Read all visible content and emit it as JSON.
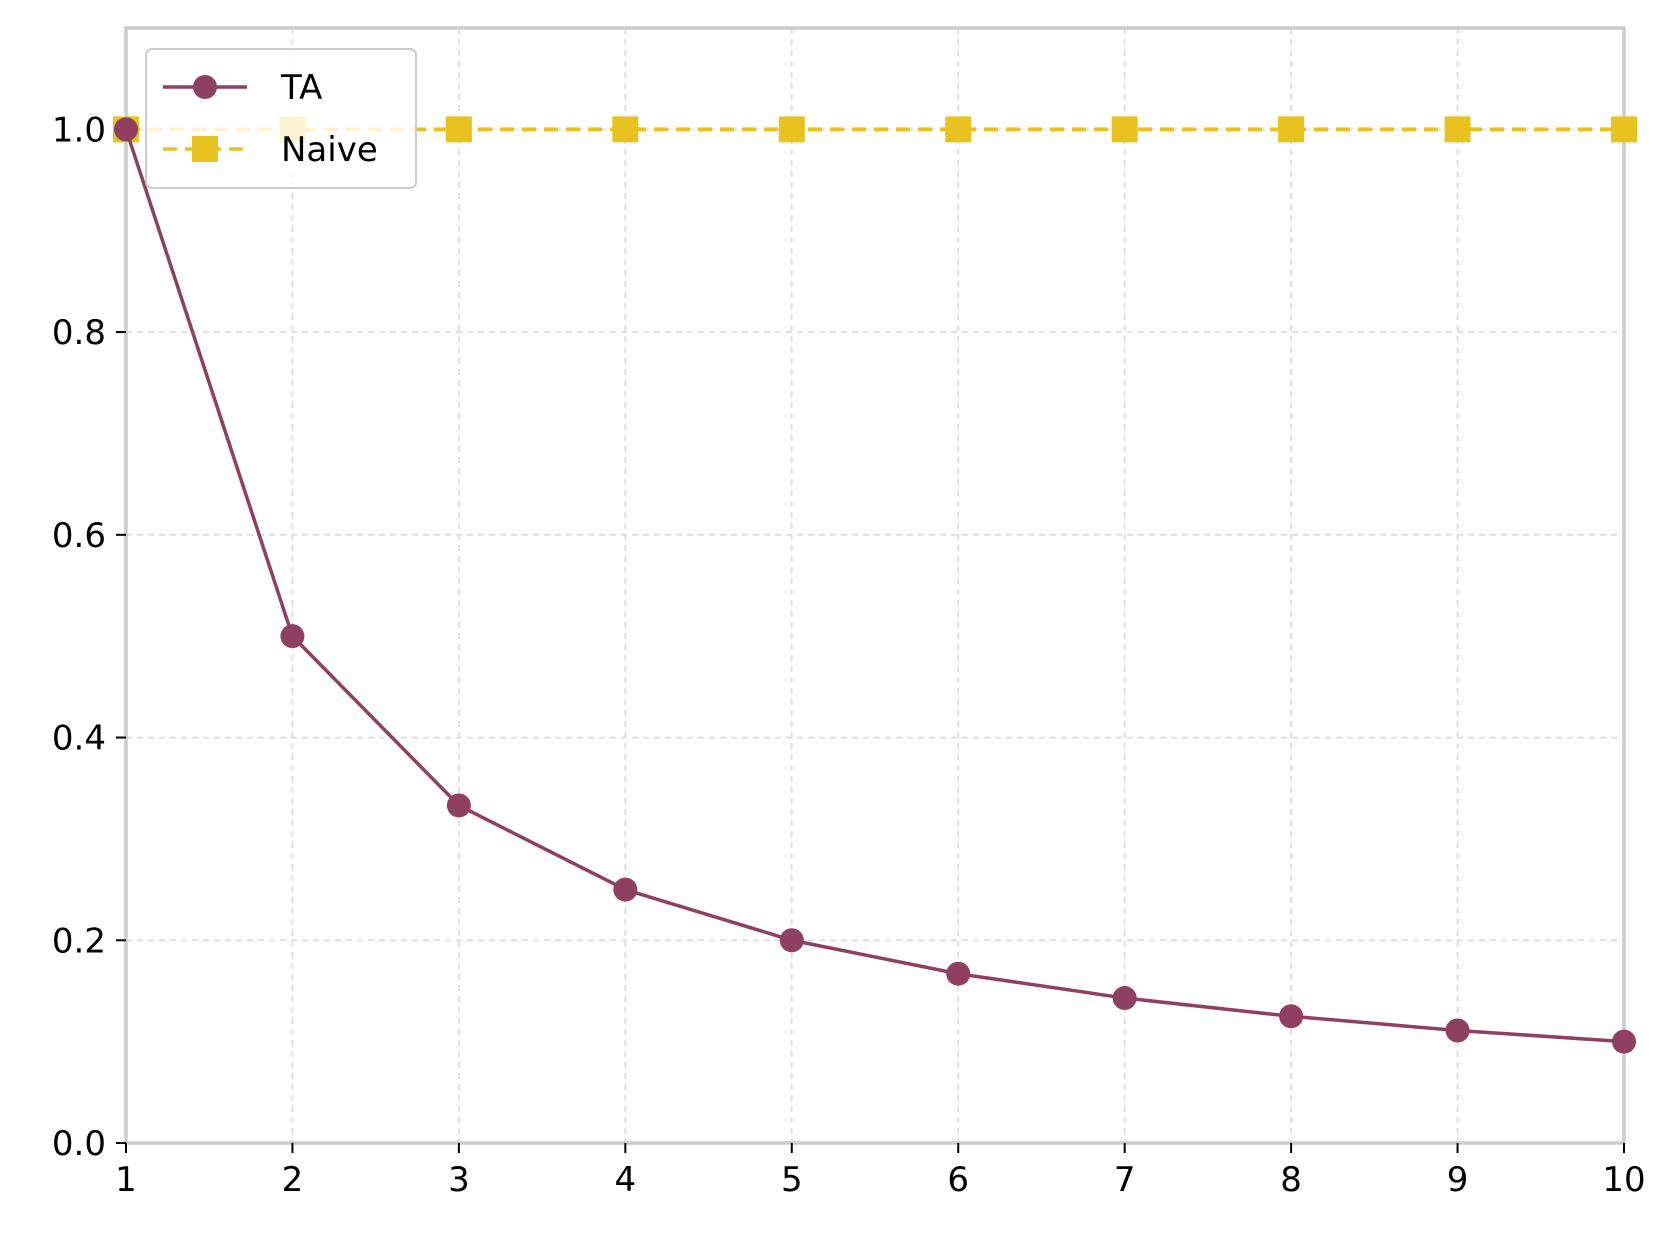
{
  "chart_data": {
    "type": "line",
    "title": "",
    "xlabel": "",
    "ylabel": "",
    "x": [
      1,
      2,
      3,
      4,
      5,
      6,
      7,
      8,
      9,
      10
    ],
    "xlim": [
      1,
      10
    ],
    "ylim": [
      0,
      1.1
    ],
    "x_ticks": [
      "1",
      "2",
      "3",
      "4",
      "5",
      "6",
      "7",
      "8",
      "9",
      "10"
    ],
    "y_ticks": [
      "0.0",
      "0.2",
      "0.4",
      "0.6",
      "0.8",
      "1.0"
    ],
    "grid": true,
    "legend_position": "top-left",
    "series": [
      {
        "name": "TA",
        "color": "#8f3f5f",
        "marker": "circle",
        "line_style": "solid",
        "values": [
          1.0,
          0.5,
          0.333,
          0.25,
          0.2,
          0.167,
          0.143,
          0.125,
          0.111,
          0.1
        ]
      },
      {
        "name": "Naive",
        "color": "#e8c21e",
        "marker": "square",
        "line_style": "dashed",
        "values": [
          1.0,
          1.0,
          1.0,
          1.0,
          1.0,
          1.0,
          1.0,
          1.0,
          1.0,
          1.0
        ]
      }
    ]
  }
}
